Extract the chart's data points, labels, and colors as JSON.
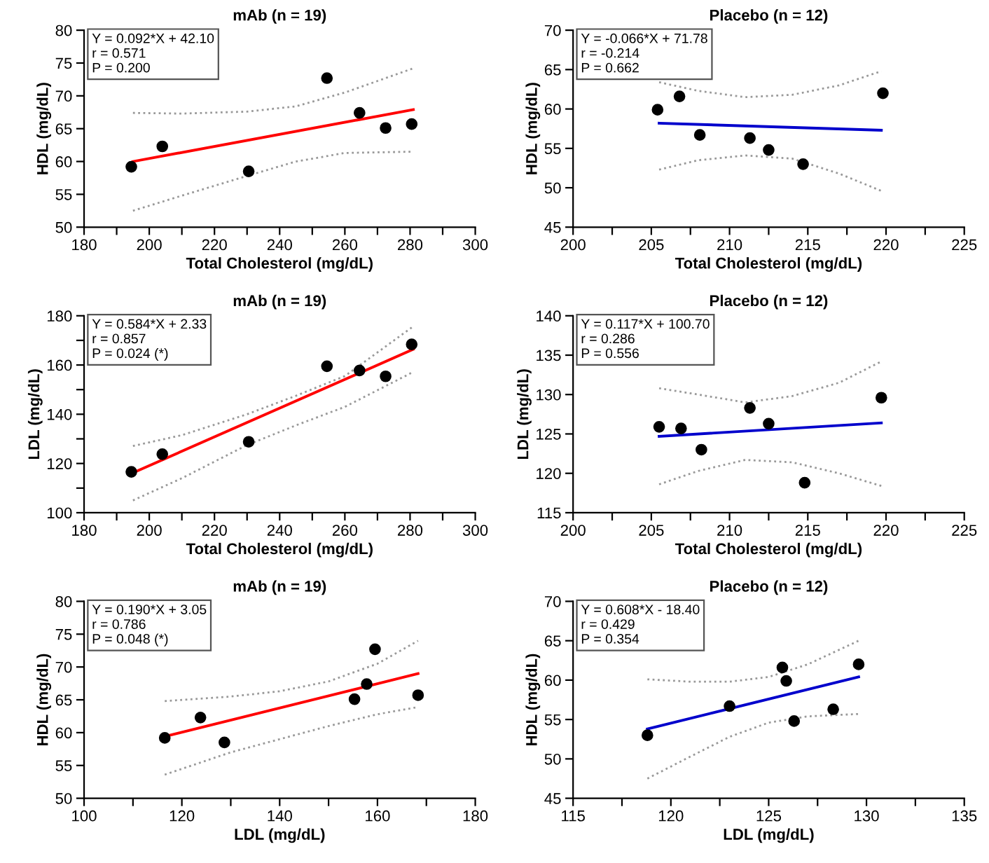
{
  "chart_data": [
    {
      "type": "scatter",
      "title": "mAb (n = 19)",
      "xlabel": "Total Cholesterol (mg/dL)",
      "ylabel": "HDL (mg/dL)",
      "annotations": [
        "Y = 0.092*X + 42.10",
        "r = 0.571",
        "P = 0.200"
      ],
      "xlim": [
        180,
        300
      ],
      "ylim": [
        50,
        80
      ],
      "xticks": [
        180,
        {
          "value": 190,
          "label": null
        },
        200,
        {
          "value": 210,
          "label": null
        },
        220,
        {
          "value": 230,
          "label": null
        },
        240,
        {
          "value": 250,
          "label": null
        },
        260,
        {
          "value": 270,
          "label": null
        },
        280,
        {
          "value": 290,
          "label": null
        },
        300
      ],
      "yticks": [
        50,
        55,
        60,
        65,
        70,
        75,
        80
      ],
      "series": [
        {
          "color": "#000000",
          "marker": "circle",
          "x": [
            194.5,
            204,
            230.5,
            254.5,
            264.5,
            272.5,
            280.5
          ],
          "values": [
            59.2,
            62.3,
            58.5,
            72.7,
            67.4,
            65.1,
            65.7
          ]
        },
        {
          "type": "line",
          "color": "#ff0000",
          "x": [
            195,
            281
          ],
          "values": [
            60.0,
            67.9
          ]
        },
        {
          "type": "line",
          "color": "#999999",
          "line_style": "dotted",
          "x": [
            195,
            210,
            230,
            245,
            260,
            281
          ],
          "values": [
            67.4,
            67.3,
            67.6,
            68.4,
            70.5,
            74.2
          ]
        },
        {
          "type": "line",
          "color": "#999999",
          "line_style": "dotted",
          "x": [
            195,
            210,
            230,
            245,
            260,
            281
          ],
          "values": [
            52.5,
            54.8,
            57.8,
            60.0,
            61.3,
            61.5
          ]
        }
      ]
    },
    {
      "type": "scatter",
      "title": "Placebo (n = 12)",
      "xlabel": "Total Cholesterol (mg/dL)",
      "ylabel": "HDL (mg/dL)",
      "annotations": [
        "Y = -0.066*X + 71.78",
        "r = -0.214",
        "P = 0.662"
      ],
      "xlim": [
        200,
        225
      ],
      "ylim": [
        45,
        70
      ],
      "xticks": [
        200,
        {
          "value": 202.5,
          "label": null
        },
        205,
        {
          "value": 207.5,
          "label": null
        },
        210,
        {
          "value": 212.5,
          "label": null
        },
        215,
        {
          "value": 217.5,
          "label": null
        },
        220,
        {
          "value": 222.5,
          "label": null
        },
        225
      ],
      "yticks": [
        45,
        50,
        55,
        60,
        65,
        70
      ],
      "series": [
        {
          "color": "#000000",
          "marker": "circle",
          "x": [
            205.4,
            206.8,
            208.1,
            211.3,
            212.5,
            214.7,
            219.8
          ],
          "values": [
            59.9,
            61.6,
            56.7,
            56.3,
            54.8,
            53.0,
            62.0
          ]
        },
        {
          "type": "line",
          "color": "#0000cc",
          "x": [
            205.5,
            219.7
          ],
          "values": [
            58.2,
            57.3
          ]
        },
        {
          "type": "line",
          "color": "#999999",
          "line_style": "dotted",
          "x": [
            205.5,
            208,
            211,
            214,
            217,
            219.7
          ],
          "values": [
            63.4,
            62.3,
            61.5,
            61.8,
            63.0,
            64.8
          ]
        },
        {
          "type": "line",
          "color": "#999999",
          "line_style": "dotted",
          "x": [
            205.5,
            208,
            211,
            214,
            217,
            219.7
          ],
          "values": [
            52.3,
            53.5,
            54.1,
            53.7,
            51.8,
            49.6
          ]
        }
      ]
    },
    {
      "type": "scatter",
      "title": "mAb (n = 19)",
      "xlabel": "Total Cholesterol (mg/dL)",
      "ylabel": "LDL (mg/dL)",
      "annotations": [
        "Y = 0.584*X + 2.33",
        "r = 0.857",
        "P = 0.024 (*)"
      ],
      "xlim": [
        180,
        300
      ],
      "ylim": [
        100,
        180
      ],
      "xticks": [
        180,
        {
          "value": 190,
          "label": null
        },
        200,
        {
          "value": 210,
          "label": null
        },
        220,
        {
          "value": 230,
          "label": null
        },
        240,
        {
          "value": 250,
          "label": null
        },
        260,
        {
          "value": 270,
          "label": null
        },
        280,
        {
          "value": 290,
          "label": null
        },
        300
      ],
      "yticks": [
        100,
        {
          "value": 110,
          "label": null
        },
        120,
        {
          "value": 130,
          "label": null
        },
        140,
        {
          "value": 150,
          "label": null
        },
        160,
        {
          "value": 170,
          "label": null
        },
        180
      ],
      "series": [
        {
          "color": "#000000",
          "marker": "circle",
          "x": [
            194.5,
            204,
            230.5,
            254.5,
            264.5,
            272.5,
            280.5
          ],
          "values": [
            116.6,
            123.8,
            128.8,
            159.5,
            157.8,
            155.4,
            168.4
          ]
        },
        {
          "type": "line",
          "color": "#ff0000",
          "x": [
            195,
            281
          ],
          "values": [
            116.2,
            166.4
          ]
        },
        {
          "type": "line",
          "color": "#999999",
          "line_style": "dotted",
          "x": [
            195,
            210,
            230,
            245,
            260,
            281
          ],
          "values": [
            127.1,
            131.5,
            140.0,
            147.5,
            155.5,
            175.7
          ]
        },
        {
          "type": "line",
          "color": "#999999",
          "line_style": "dotted",
          "x": [
            195,
            210,
            230,
            245,
            260,
            281
          ],
          "values": [
            105.0,
            114.0,
            127.5,
            135.5,
            143.0,
            157.2
          ]
        }
      ]
    },
    {
      "type": "scatter",
      "title": "Placebo (n = 12)",
      "xlabel": "Total Cholesterol (mg/dL)",
      "ylabel": "LDL (mg/dL)",
      "annotations": [
        "Y = 0.117*X + 100.70",
        "r = 0.286",
        "P = 0.556"
      ],
      "xlim": [
        200,
        225
      ],
      "ylim": [
        115,
        140
      ],
      "xticks": [
        200,
        {
          "value": 202.5,
          "label": null
        },
        205,
        {
          "value": 207.5,
          "label": null
        },
        210,
        {
          "value": 212.5,
          "label": null
        },
        215,
        {
          "value": 217.5,
          "label": null
        },
        220,
        {
          "value": 222.5,
          "label": null
        },
        225
      ],
      "yticks": [
        115,
        120,
        125,
        130,
        135,
        140
      ],
      "series": [
        {
          "color": "#000000",
          "marker": "circle",
          "x": [
            205.5,
            206.9,
            208.2,
            211.3,
            212.5,
            214.8,
            219.7
          ],
          "values": [
            125.9,
            125.7,
            123.0,
            128.3,
            126.3,
            118.8,
            129.6
          ]
        },
        {
          "type": "line",
          "color": "#0000cc",
          "x": [
            205.5,
            219.7
          ],
          "values": [
            124.7,
            126.4
          ]
        },
        {
          "type": "line",
          "color": "#999999",
          "line_style": "dotted",
          "x": [
            205.5,
            208,
            211,
            214,
            217,
            219.7
          ],
          "values": [
            130.8,
            130.0,
            129.0,
            129.8,
            131.5,
            134.2
          ]
        },
        {
          "type": "line",
          "color": "#999999",
          "line_style": "dotted",
          "x": [
            205.5,
            208,
            211,
            214,
            217,
            219.7
          ],
          "values": [
            118.6,
            120.3,
            121.7,
            121.4,
            120.0,
            118.4
          ]
        }
      ]
    },
    {
      "type": "scatter",
      "title": "mAb (n = 19)",
      "xlabel": "LDL (mg/dL)",
      "ylabel": "HDL (mg/dL)",
      "annotations": [
        "Y = 0.190*X + 3.05",
        "r = 0.786",
        "P = 0.048 (*)"
      ],
      "xlim": [
        100,
        180
      ],
      "ylim": [
        50,
        80
      ],
      "xticks": [
        100,
        {
          "value": 110,
          "label": null
        },
        120,
        {
          "value": 130,
          "label": null
        },
        140,
        {
          "value": 150,
          "label": null
        },
        160,
        {
          "value": 170,
          "label": null
        },
        180
      ],
      "yticks": [
        50,
        55,
        60,
        65,
        70,
        75,
        80
      ],
      "series": [
        {
          "color": "#000000",
          "marker": "circle",
          "x": [
            116.5,
            123.8,
            128.7,
            155.3,
            157.8,
            159.5,
            168.3
          ],
          "values": [
            59.2,
            62.3,
            58.5,
            65.1,
            67.4,
            72.7,
            65.7
          ]
        },
        {
          "type": "line",
          "color": "#ff0000",
          "x": [
            116.5,
            168.3
          ],
          "values": [
            59.4,
            69.0
          ]
        },
        {
          "type": "line",
          "color": "#999999",
          "line_style": "dotted",
          "x": [
            116.5,
            130,
            140,
            150,
            160,
            168.3
          ],
          "values": [
            64.8,
            65.5,
            66.3,
            67.8,
            70.5,
            74.0
          ]
        },
        {
          "type": "line",
          "color": "#999999",
          "line_style": "dotted",
          "x": [
            116.5,
            130,
            140,
            150,
            160,
            168.3
          ],
          "values": [
            53.6,
            57.0,
            59.0,
            61.0,
            62.8,
            63.9
          ]
        }
      ]
    },
    {
      "type": "scatter",
      "title": "Placebo (n = 12)",
      "xlabel": "LDL (mg/dL)",
      "ylabel": "HDL (mg/dL)",
      "annotations": [
        "Y = 0.608*X - 18.40",
        "r = 0.429",
        "P = 0.354"
      ],
      "xlim": [
        115,
        135
      ],
      "ylim": [
        45,
        70
      ],
      "xticks": [
        115,
        {
          "value": 117.5,
          "label": null
        },
        120,
        {
          "value": 122.5,
          "label": null
        },
        125,
        {
          "value": 127.5,
          "label": null
        },
        130,
        {
          "value": 132.5,
          "label": null
        },
        135
      ],
      "yticks": [
        45,
        50,
        55,
        60,
        65,
        70
      ],
      "series": [
        {
          "color": "#000000",
          "marker": "circle",
          "x": [
            118.8,
            123.0,
            125.7,
            125.9,
            126.3,
            128.3,
            129.6
          ],
          "values": [
            53.0,
            56.7,
            61.6,
            59.9,
            54.8,
            56.3,
            62.0
          ]
        },
        {
          "type": "line",
          "color": "#0000cc",
          "x": [
            118.8,
            129.6
          ],
          "values": [
            53.8,
            60.4
          ]
        },
        {
          "type": "line",
          "color": "#999999",
          "line_style": "dotted",
          "x": [
            118.8,
            121,
            123,
            125,
            127,
            129.6
          ],
          "values": [
            60.1,
            59.8,
            59.8,
            60.4,
            62.0,
            65.0
          ]
        },
        {
          "type": "line",
          "color": "#999999",
          "line_style": "dotted",
          "x": [
            118.8,
            121,
            123,
            125,
            127,
            129.6
          ],
          "values": [
            47.5,
            50.3,
            52.8,
            54.6,
            55.4,
            55.7
          ]
        }
      ]
    }
  ]
}
